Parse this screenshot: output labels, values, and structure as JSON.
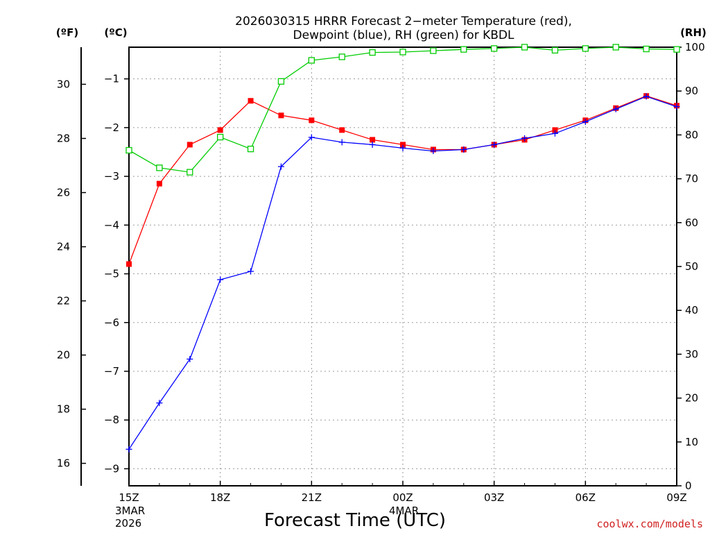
{
  "chart_data": {
    "type": "line",
    "title_lines": [
      "2026030315 HRRR Forecast 2−meter Temperature (red),",
      "Dewpoint (blue), RH (green) for KBDL"
    ],
    "xlabel": "Forecast Time (UTC)",
    "unit_labels": {
      "fahrenheit": "(ºF)",
      "celsius": "(ºC)",
      "rh": "(RH)"
    },
    "credit": "coolwx.com/models",
    "hour_range": [
      0,
      18
    ],
    "x_ticks": [
      {
        "hour": 0,
        "label": "15Z",
        "sub": [
          "3MAR",
          "2026"
        ]
      },
      {
        "hour": 3,
        "label": "18Z",
        "sub": []
      },
      {
        "hour": 6,
        "label": "21Z",
        "sub": []
      },
      {
        "hour": 9,
        "label": "00Z",
        "sub": [
          "4MAR"
        ]
      },
      {
        "hour": 12,
        "label": "03Z",
        "sub": []
      },
      {
        "hour": 15,
        "label": "06Z",
        "sub": []
      },
      {
        "hour": 18,
        "label": "09Z",
        "sub": []
      }
    ],
    "celsius_range": [
      -9.35,
      -0.35
    ],
    "celsius_ticks": [
      -9,
      -8,
      -7,
      -6,
      -5,
      -4,
      -3,
      -2,
      -1
    ],
    "fahrenheit_ticks": [
      16,
      18,
      20,
      22,
      24,
      26,
      28,
      30
    ],
    "rh_range": [
      0,
      100
    ],
    "rh_ticks": [
      0,
      10,
      20,
      30,
      40,
      50,
      60,
      70,
      80,
      90,
      100
    ],
    "grid": true,
    "colors": {
      "temperature": "#ff0000",
      "dewpoint": "#0000ff",
      "rh": "#00cc00",
      "credit": "#d02020"
    },
    "series": [
      {
        "name": "Temperature",
        "axis": "celsius",
        "marker": "square-filled",
        "color": "#ff0000",
        "hours": [
          0,
          1,
          2,
          3,
          4,
          5,
          6,
          7,
          8,
          9,
          10,
          11,
          12,
          13,
          14,
          15,
          16,
          17,
          18
        ],
        "values": [
          -4.8,
          -3.15,
          -2.35,
          -2.05,
          -1.45,
          -1.75,
          -1.85,
          -2.05,
          -2.25,
          -2.35,
          -2.45,
          -2.45,
          -2.35,
          -2.25,
          -2.05,
          -1.85,
          -1.6,
          -1.35,
          -1.55
        ]
      },
      {
        "name": "Dewpoint",
        "axis": "celsius",
        "marker": "plus",
        "color": "#0000ff",
        "hours": [
          0,
          1,
          2,
          3,
          4,
          5,
          6,
          7,
          8,
          9,
          10,
          11,
          12,
          13,
          14,
          15,
          16,
          17,
          18
        ],
        "values": [
          -8.6,
          -7.65,
          -6.75,
          -5.12,
          -4.95,
          -2.8,
          -2.2,
          -2.3,
          -2.35,
          -2.42,
          -2.48,
          -2.45,
          -2.35,
          -2.22,
          -2.12,
          -1.88,
          -1.62,
          -1.36,
          -1.57
        ]
      },
      {
        "name": "RH",
        "axis": "rh",
        "marker": "square-open",
        "color": "#00cc00",
        "hours": [
          0,
          1,
          2,
          3,
          4,
          5,
          6,
          7,
          8,
          9,
          10,
          11,
          12,
          13,
          14,
          15,
          16,
          17,
          18
        ],
        "values": [
          76.5,
          72.5,
          71.5,
          79.5,
          76.8,
          92.2,
          97.0,
          97.8,
          98.8,
          98.9,
          99.2,
          99.5,
          99.7,
          100.0,
          99.3,
          99.7,
          100.0,
          99.6,
          99.5
        ]
      }
    ]
  }
}
